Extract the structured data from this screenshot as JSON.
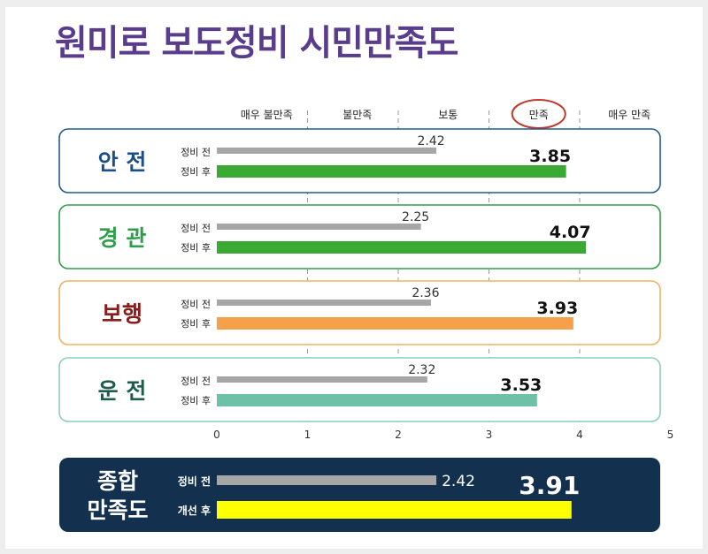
{
  "title": "원미로 보도정비 시민만족도",
  "scale_labels": [
    "매우 불만족",
    "불만족",
    "보통",
    "만족",
    "매우 만족"
  ],
  "highlighted_scale_label": "만족",
  "colors": {
    "title": "#5a3c8c",
    "before_bar": "#a6a6a6",
    "highlight_circle": "#c0392b",
    "summary_bg": "#13304f",
    "summary_after_bar": "#ffff00"
  },
  "chart_data": {
    "type": "bar",
    "orientation": "horizontal",
    "xlim": [
      0,
      5
    ],
    "x_ticks": [
      0,
      1,
      2,
      3,
      4,
      5
    ],
    "grid": true,
    "categories": [
      {
        "label": "안 전",
        "before_label": "정비 전",
        "after_label": "정비 후",
        "before": 2.42,
        "after": 3.85,
        "color": "#3aaa35",
        "label_color": "#1a4f8a",
        "border": "#1f5b8c"
      },
      {
        "label": "경 관",
        "before_label": "정비 전",
        "after_label": "정비 후",
        "before": 2.25,
        "after": 4.07,
        "color": "#3aaa35",
        "label_color": "#2e9e4b",
        "border": "#2e9e4b"
      },
      {
        "label": "보행",
        "before_label": "정비 전",
        "after_label": "정비 후",
        "before": 2.36,
        "after": 3.93,
        "color": "#f5a04a",
        "label_color": "#8b1a1a",
        "border": "#f0b060"
      },
      {
        "label": "운 전",
        "before_label": "정비 전",
        "after_label": "정비 후",
        "before": 2.32,
        "after": 3.53,
        "color": "#6cc1a7",
        "label_color": "#1f5d4a",
        "border": "#8ccfbc"
      }
    ],
    "summary": {
      "label_line1": "종합",
      "label_line2": "만족도",
      "before_label": "정비 전",
      "after_label": "개선 후",
      "before": 2.42,
      "after": 3.91
    }
  }
}
